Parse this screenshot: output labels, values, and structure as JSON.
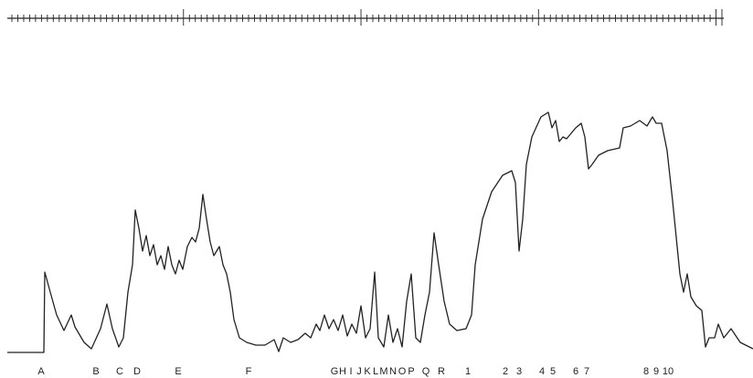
{
  "labels": [
    "A",
    "B",
    "C",
    "D",
    "E",
    "F",
    "G",
    "H",
    "I",
    "J",
    "K",
    "L",
    "M",
    "N",
    "O",
    "P",
    "Q",
    "R",
    "1",
    "2",
    "3",
    "4",
    "5",
    "6",
    "7",
    "8",
    "9",
    "10"
  ]
}
